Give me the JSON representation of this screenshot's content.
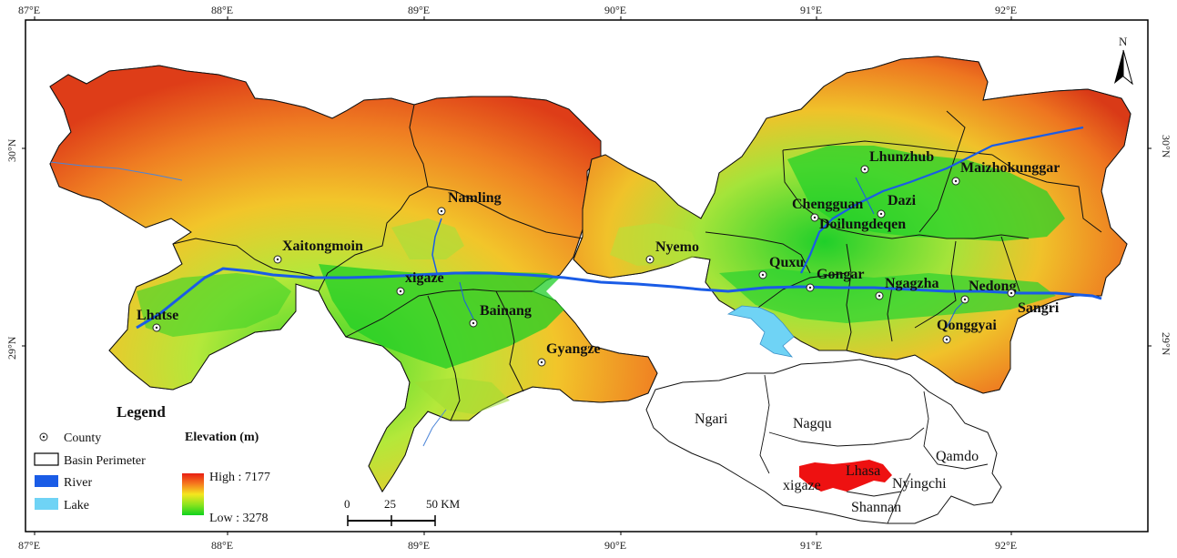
{
  "map": {
    "north_label": "N",
    "lon_ticks": [
      "87°E",
      "88°E",
      "89°E",
      "90°E",
      "91°E",
      "92°E"
    ],
    "lat_ticks": [
      "30°N",
      "29°N"
    ],
    "counties": [
      {
        "id": "lhatse",
        "name": "Lhatse"
      },
      {
        "id": "xaitongmoin",
        "name": "Xaitongmoin"
      },
      {
        "id": "namling",
        "name": "Namling"
      },
      {
        "id": "xigaze",
        "name": "xigaze"
      },
      {
        "id": "bainang",
        "name": "Bainang"
      },
      {
        "id": "gyangze",
        "name": "Gyangze"
      },
      {
        "id": "nyemo",
        "name": "Nyemo"
      },
      {
        "id": "quxu",
        "name": "Quxu"
      },
      {
        "id": "gongar",
        "name": "Gongar"
      },
      {
        "id": "chengguan",
        "name": "Chengguan"
      },
      {
        "id": "doilungdeqen",
        "name": "Doilungdeqen"
      },
      {
        "id": "dazi",
        "name": "Dazi"
      },
      {
        "id": "lhunzhub",
        "name": "Lhunzhub"
      },
      {
        "id": "maizhokunggar",
        "name": "Maizhokunggar"
      },
      {
        "id": "ngagzha",
        "name": "Ngagzha"
      },
      {
        "id": "nedong",
        "name": "Nedong"
      },
      {
        "id": "sangri",
        "name": "Sangri"
      },
      {
        "id": "qonggyai",
        "name": "Qonggyai"
      }
    ]
  },
  "legend": {
    "title": "Legend",
    "county": "County",
    "basin": "Basin Perimeter",
    "river": "River",
    "lake": "Lake",
    "elevation_title": "Elevation (m)",
    "high": "High : 7177",
    "low": "Low : 3278",
    "colors": {
      "river": "#1a5ce6",
      "lake": "#6fd3f5"
    }
  },
  "scale_bar": {
    "labels": [
      "0",
      "25",
      "50 KM"
    ]
  },
  "inset": {
    "regions": [
      "Ngari",
      "Nagqu",
      "Qamdo",
      "Lhasa",
      "xigaze",
      "Nyingchi",
      "Shannan"
    ],
    "highlight_color": "#ee1111"
  }
}
